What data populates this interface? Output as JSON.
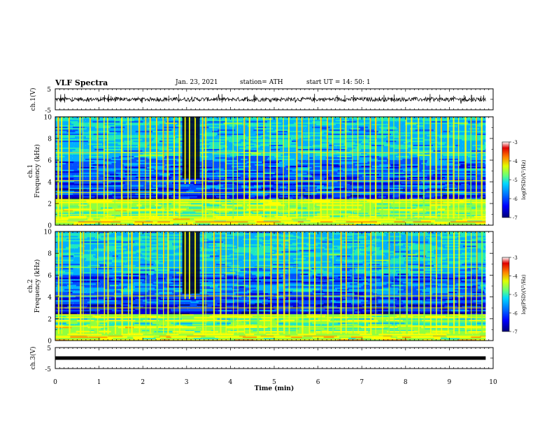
{
  "header": {
    "title": "VLF Spectra",
    "date": "Jan. 23, 2021",
    "station": "station= ATH",
    "start_ut": "start UT = 14: 50: 1"
  },
  "colors": {
    "colormap": [
      "#00007a",
      "#0000d8",
      "#0050ff",
      "#00b0ff",
      "#20e8c0",
      "#90ff40",
      "#ffff00",
      "#ffa000",
      "#ff2000",
      "#d00000",
      "#ffffff"
    ],
    "waveform": "#000000",
    "background": "#ffffff"
  },
  "chart_data": [
    {
      "type": "line",
      "panel": "ch1-waveform",
      "ylabel": "ch.1(V)",
      "ylim": [
        -5,
        5
      ],
      "yticks": [
        "5",
        "-5"
      ],
      "xlim": [
        0,
        10
      ],
      "series": [
        {
          "description_values": "noise around 0 V",
          "baseline": 0,
          "amplitude": 1.2
        }
      ]
    },
    {
      "type": "heatmap",
      "panel": "ch1-spectrogram",
      "ylabel": "ch.1\nFrequency (kHz)",
      "ylabel_line1": "ch.1",
      "ylabel_line2": "Frequency (kHz)",
      "ylim": [
        0,
        10
      ],
      "yticks": [
        "0",
        "2",
        "4",
        "6",
        "8",
        "10"
      ],
      "xlim": [
        0,
        10
      ],
      "data_end_min": 9.83,
      "colorbar": {
        "label": "log(PSD)(V²/Hz)",
        "range": [
          -7,
          -3
        ],
        "ticks": [
          "-3",
          "-4",
          "-5",
          "-6",
          "-7"
        ]
      },
      "dark_gap_min": [
        2.9,
        3.3
      ],
      "spheric_times_min": [
        0.05,
        0.13,
        0.3,
        0.55,
        0.62,
        0.78,
        0.95,
        1.1,
        1.18,
        1.35,
        1.5,
        1.65,
        1.72,
        1.9,
        2.05,
        2.15,
        2.3,
        2.45,
        2.55,
        2.7,
        2.82,
        3.35,
        3.42,
        3.6,
        3.75,
        3.88,
        4.05,
        4.15,
        4.3,
        4.42,
        4.6,
        4.75,
        4.9,
        5.05,
        5.2,
        5.32,
        5.5,
        5.62,
        5.78,
        5.9,
        6.05,
        6.2,
        6.32,
        6.5,
        6.62,
        6.78,
        6.9,
        7.05,
        7.18,
        7.3,
        7.45,
        7.6,
        7.72,
        7.85,
        8.0,
        8.12,
        8.28,
        8.4,
        8.55,
        8.68,
        8.8,
        8.95,
        9.08,
        9.2,
        9.35,
        9.48,
        9.6,
        9.72
      ]
    },
    {
      "type": "heatmap",
      "panel": "ch2-spectrogram",
      "ylabel": "ch.2\nFrequency (kHz)",
      "ylabel_line1": "ch.2",
      "ylabel_line2": "Frequency (kHz)",
      "ylim": [
        0,
        10
      ],
      "yticks": [
        "0",
        "2",
        "4",
        "6",
        "8",
        "10"
      ],
      "xlim": [
        0,
        10
      ],
      "data_end_min": 9.83,
      "colorbar": {
        "label": "log(PSD)(V²/Hz)",
        "range": [
          -7,
          -3
        ],
        "ticks": [
          "-3",
          "-4",
          "-5",
          "-6",
          "-7"
        ]
      },
      "dark_gap_min": [
        2.9,
        3.3
      ],
      "spheric_times_min": [
        0.05,
        0.13,
        0.3,
        0.55,
        0.62,
        0.78,
        0.95,
        1.1,
        1.18,
        1.35,
        1.5,
        1.65,
        1.72,
        1.9,
        2.05,
        2.15,
        2.3,
        2.45,
        2.55,
        2.7,
        2.82,
        3.35,
        3.42,
        3.6,
        3.75,
        3.88,
        4.05,
        4.15,
        4.3,
        4.42,
        4.6,
        4.75,
        4.9,
        5.05,
        5.2,
        5.32,
        5.5,
        5.62,
        5.78,
        5.9,
        6.05,
        6.2,
        6.32,
        6.5,
        6.62,
        6.78,
        6.9,
        7.05,
        7.18,
        7.3,
        7.45,
        7.6,
        7.72,
        7.85,
        8.0,
        8.12,
        8.28,
        8.4,
        8.55,
        8.68,
        8.8,
        8.95,
        9.08,
        9.2,
        9.35,
        9.48,
        9.6,
        9.72
      ]
    },
    {
      "type": "line",
      "panel": "ch3-waveform",
      "ylabel": "ch.3(V)",
      "ylim": [
        -5,
        5
      ],
      "yticks": [
        "5",
        "-5"
      ],
      "xlim": [
        0,
        10
      ],
      "xlabel": "Time (min)",
      "xticks": [
        "0",
        "1",
        "2",
        "3",
        "4",
        "5",
        "6",
        "7",
        "8",
        "9",
        "10"
      ],
      "series": [
        {
          "baseline": 0,
          "amplitude": 0.4
        }
      ]
    }
  ]
}
